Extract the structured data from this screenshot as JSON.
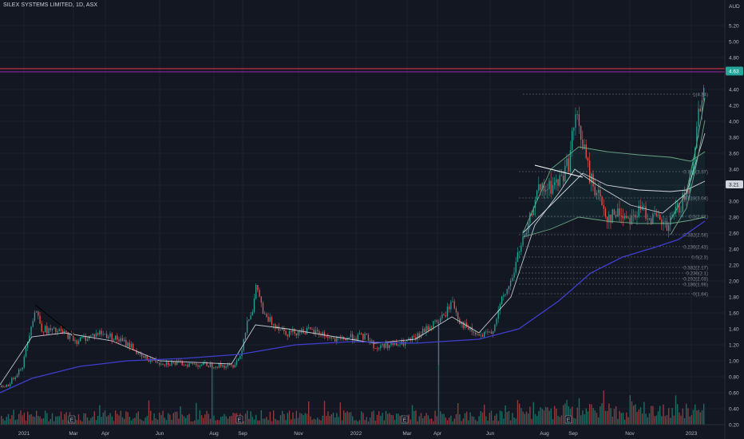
{
  "header": {
    "symbol_title": "SILEX SYSTEMS LIMITED, 1D, ASX"
  },
  "chart_data": {
    "type": "candlestick",
    "title": "SILEX SYSTEMS LIMITED, 1D, ASX",
    "currency": "AUD",
    "current_price": "4.63",
    "secondary_price_badge": "3.21",
    "ylim": [
      0.2,
      5.4
    ],
    "y_ticks": [
      "5.20",
      "5.00",
      "4.80",
      "4.40",
      "4.20",
      "4.00",
      "3.80",
      "3.60",
      "3.40",
      "3.20",
      "3.00",
      "2.80",
      "2.60",
      "2.40",
      "2.20",
      "2.00",
      "1.80",
      "1.60",
      "1.40",
      "1.20",
      "1.00",
      "0.80",
      "0.60",
      "0.40",
      "0.20"
    ],
    "x_ticks": [
      "2021",
      "Mar",
      "Apr",
      "Jun",
      "Aug",
      "Sep",
      "Nov",
      "2022",
      "Mar",
      "Apr",
      "Jun",
      "Aug",
      "Sep",
      "Nov",
      "2023"
    ],
    "earnings_markers": 4,
    "fib_levels": [
      {
        "label": "1(4.34)",
        "value": 4.34
      },
      {
        "label": "0.786(3.37)",
        "value": 3.37
      },
      {
        "label": "0.618(3.04)",
        "value": 3.04
      },
      {
        "label": "0.5(2.81)",
        "value": 2.81
      },
      {
        "label": "0.382(2.58)",
        "value": 2.58
      },
      {
        "label": "0.236(2.43)",
        "value": 2.43
      },
      {
        "label": "0.5(2.3)",
        "value": 2.3
      },
      {
        "label": "0.382(2.17)",
        "value": 2.17
      },
      {
        "label": "0.236(2.1)",
        "value": 2.1
      },
      {
        "label": "0.202(2.03)",
        "value": 2.03
      },
      {
        "label": "0.186(1.96)",
        "value": 1.96
      },
      {
        "label": "0(1.84)",
        "value": 1.84
      }
    ],
    "price_path": [
      [
        0,
        0.67
      ],
      [
        10,
        0.7
      ],
      [
        28,
        0.95
      ],
      [
        38,
        1.45
      ],
      [
        44,
        1.65
      ],
      [
        52,
        1.4
      ],
      [
        60,
        1.38
      ],
      [
        80,
        1.35
      ],
      [
        95,
        1.25
      ],
      [
        110,
        1.3
      ],
      [
        124,
        1.35
      ],
      [
        140,
        1.3
      ],
      [
        165,
        1.18
      ],
      [
        175,
        1.05
      ],
      [
        200,
        0.98
      ],
      [
        230,
        0.96
      ],
      [
        260,
        0.95
      ],
      [
        290,
        0.93
      ],
      [
        300,
        1.05
      ],
      [
        310,
        1.55
      ],
      [
        316,
        1.65
      ],
      [
        321,
        1.95
      ],
      [
        330,
        1.55
      ],
      [
        345,
        1.45
      ],
      [
        360,
        1.35
      ],
      [
        380,
        1.38
      ],
      [
        400,
        1.35
      ],
      [
        420,
        1.25
      ],
      [
        440,
        1.3
      ],
      [
        460,
        1.3
      ],
      [
        470,
        1.15
      ],
      [
        480,
        1.2
      ],
      [
        500,
        1.2
      ],
      [
        520,
        1.28
      ],
      [
        540,
        1.45
      ],
      [
        555,
        1.55
      ],
      [
        566,
        1.75
      ],
      [
        575,
        1.5
      ],
      [
        585,
        1.4
      ],
      [
        600,
        1.3
      ],
      [
        615,
        1.35
      ],
      [
        628,
        1.75
      ],
      [
        640,
        2.0
      ],
      [
        650,
        2.4
      ],
      [
        660,
        2.6
      ],
      [
        670,
        3.1
      ],
      [
        685,
        3.15
      ],
      [
        700,
        3.25
      ],
      [
        712,
        3.5
      ],
      [
        720,
        4.05
      ],
      [
        728,
        3.8
      ],
      [
        738,
        3.3
      ],
      [
        748,
        3.1
      ],
      [
        760,
        2.8
      ],
      [
        775,
        2.85
      ],
      [
        790,
        2.8
      ],
      [
        805,
        2.9
      ],
      [
        815,
        2.8
      ],
      [
        825,
        2.75
      ],
      [
        835,
        2.65
      ],
      [
        845,
        2.85
      ],
      [
        855,
        3.0
      ],
      [
        862,
        3.15
      ],
      [
        868,
        3.6
      ],
      [
        875,
        4.15
      ],
      [
        883,
        4.63
      ]
    ],
    "series": [
      {
        "name": "",
        "kind": "ema-fast",
        "color": "#e0e3eb",
        "points": [
          [
            0,
            0.7
          ],
          [
            40,
            1.3
          ],
          [
            80,
            1.35
          ],
          [
            140,
            1.25
          ],
          [
            200,
            1.0
          ],
          [
            290,
            0.96
          ],
          [
            320,
            1.45
          ],
          [
            360,
            1.4
          ],
          [
            420,
            1.3
          ],
          [
            470,
            1.22
          ],
          [
            520,
            1.27
          ],
          [
            566,
            1.55
          ],
          [
            600,
            1.35
          ],
          [
            640,
            1.8
          ],
          [
            670,
            2.7
          ],
          [
            700,
            3.1
          ],
          [
            720,
            3.4
          ],
          [
            748,
            3.2
          ],
          [
            790,
            2.95
          ],
          [
            830,
            2.85
          ],
          [
            860,
            3.1
          ],
          [
            883,
            3.85
          ]
        ]
      },
      {
        "name": "",
        "kind": "vwap",
        "color": "#d1d4dc",
        "points": [
          [
            655,
            2.6
          ],
          [
            700,
            3.05
          ],
          [
            730,
            3.35
          ],
          [
            760,
            3.2
          ],
          [
            800,
            3.14
          ],
          [
            840,
            3.12
          ],
          [
            860,
            3.14
          ],
          [
            883,
            3.25
          ]
        ]
      },
      {
        "name": "",
        "kind": "upper-band",
        "color": "#6ba583",
        "points": [
          [
            655,
            2.6
          ],
          [
            690,
            3.4
          ],
          [
            725,
            3.68
          ],
          [
            760,
            3.62
          ],
          [
            800,
            3.58
          ],
          [
            840,
            3.55
          ],
          [
            865,
            3.5
          ],
          [
            883,
            3.62
          ]
        ]
      },
      {
        "name": "",
        "kind": "lower-band",
        "color": "#6ba583",
        "points": [
          [
            655,
            2.55
          ],
          [
            690,
            2.65
          ],
          [
            725,
            2.8
          ],
          [
            760,
            2.75
          ],
          [
            800,
            2.72
          ],
          [
            840,
            2.72
          ],
          [
            865,
            2.76
          ],
          [
            883,
            2.8
          ]
        ]
      },
      {
        "name": "",
        "kind": "sma-200",
        "color": "#3f3fcf",
        "points": [
          [
            0,
            0.6
          ],
          [
            40,
            0.78
          ],
          [
            100,
            0.93
          ],
          [
            160,
            1.0
          ],
          [
            230,
            1.03
          ],
          [
            300,
            1.08
          ],
          [
            370,
            1.2
          ],
          [
            440,
            1.24
          ],
          [
            520,
            1.22
          ],
          [
            600,
            1.27
          ],
          [
            650,
            1.4
          ],
          [
            700,
            1.75
          ],
          [
            740,
            2.1
          ],
          [
            780,
            2.3
          ],
          [
            820,
            2.42
          ],
          [
            850,
            2.52
          ],
          [
            883,
            2.75
          ]
        ]
      }
    ],
    "trendlines": [
      {
        "color": "#000000",
        "from": [
          44,
          1.7
        ],
        "to": [
          95,
          1.3
        ]
      },
      {
        "color": "#ffffff",
        "from": [
          670,
          3.45
        ],
        "to": [
          730,
          3.3
        ]
      }
    ],
    "horizontal_lines": [
      {
        "color": "#f23645",
        "value": 4.66
      },
      {
        "color": "#9c27b0",
        "value": 4.62
      }
    ],
    "grid": true,
    "colors": {
      "up": "#26a69a",
      "down": "#ef5350",
      "background": "#131722",
      "price_badge": "#26a69a"
    }
  }
}
